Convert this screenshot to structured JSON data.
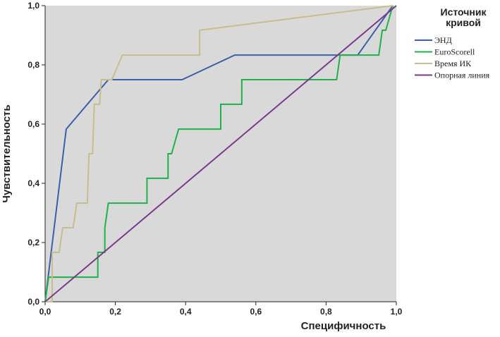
{
  "chart_data": {
    "type": "line",
    "xlabel": "Специфичность",
    "ylabel": "Чувствительность",
    "legend_title": "Источник кривой",
    "legend": "right",
    "xlim": [
      0,
      1
    ],
    "ylim": [
      0,
      1
    ],
    "xticks": [
      {
        "value": 0,
        "label": "0,0"
      },
      {
        "value": 0.2,
        "label": "0,2"
      },
      {
        "value": 0.4,
        "label": "0,4"
      },
      {
        "value": 0.6,
        "label": "0,6"
      },
      {
        "value": 0.8,
        "label": "0,8"
      },
      {
        "value": 1,
        "label": "1,0"
      }
    ],
    "yticks": [
      {
        "value": 0,
        "label": "0,0"
      },
      {
        "value": 0.2,
        "label": "0,2"
      },
      {
        "value": 0.4,
        "label": "0,4"
      },
      {
        "value": 0.6,
        "label": "0,6"
      },
      {
        "value": 0.8,
        "label": "0,8"
      },
      {
        "value": 1,
        "label": "1,0"
      }
    ],
    "series": [
      {
        "name": "ЭНД",
        "color": "#3b5fa8",
        "x": [
          0,
          0.06,
          0.18,
          0.39,
          0.54,
          0.89,
          0.99
        ],
        "values": [
          0,
          0.583,
          0.75,
          0.75,
          0.833,
          0.833,
          1.0
        ]
      },
      {
        "name": "EuroScorell",
        "color": "#1db34a",
        "x": [
          0,
          0.01,
          0.15,
          0.15,
          0.17,
          0.17,
          0.18,
          0.29,
          0.29,
          0.35,
          0.35,
          0.36,
          0.38,
          0.5,
          0.5,
          0.56,
          0.56,
          0.83,
          0.84,
          0.95,
          0.96,
          0.97,
          0.99
        ],
        "values": [
          0,
          0.083,
          0.083,
          0.167,
          0.167,
          0.25,
          0.333,
          0.333,
          0.417,
          0.417,
          0.5,
          0.5,
          0.583,
          0.583,
          0.667,
          0.667,
          0.75,
          0.75,
          0.833,
          0.833,
          0.917,
          0.917,
          1.0
        ]
      },
      {
        "name": "Время ИК",
        "color": "#c8bd8c",
        "x": [
          0,
          0.02,
          0.02,
          0.04,
          0.05,
          0.08,
          0.09,
          0.12,
          0.125,
          0.135,
          0.14,
          0.155,
          0.16,
          0.19,
          0.22,
          0.44,
          0.44,
          0.99
        ],
        "values": [
          0,
          0,
          0.167,
          0.167,
          0.25,
          0.25,
          0.333,
          0.333,
          0.5,
          0.5,
          0.667,
          0.667,
          0.75,
          0.75,
          0.833,
          0.833,
          0.917,
          1.0
        ]
      },
      {
        "name": "Опорная линия",
        "color": "#7b3a8e",
        "x": [
          0,
          1
        ],
        "values": [
          0,
          1
        ]
      }
    ]
  }
}
